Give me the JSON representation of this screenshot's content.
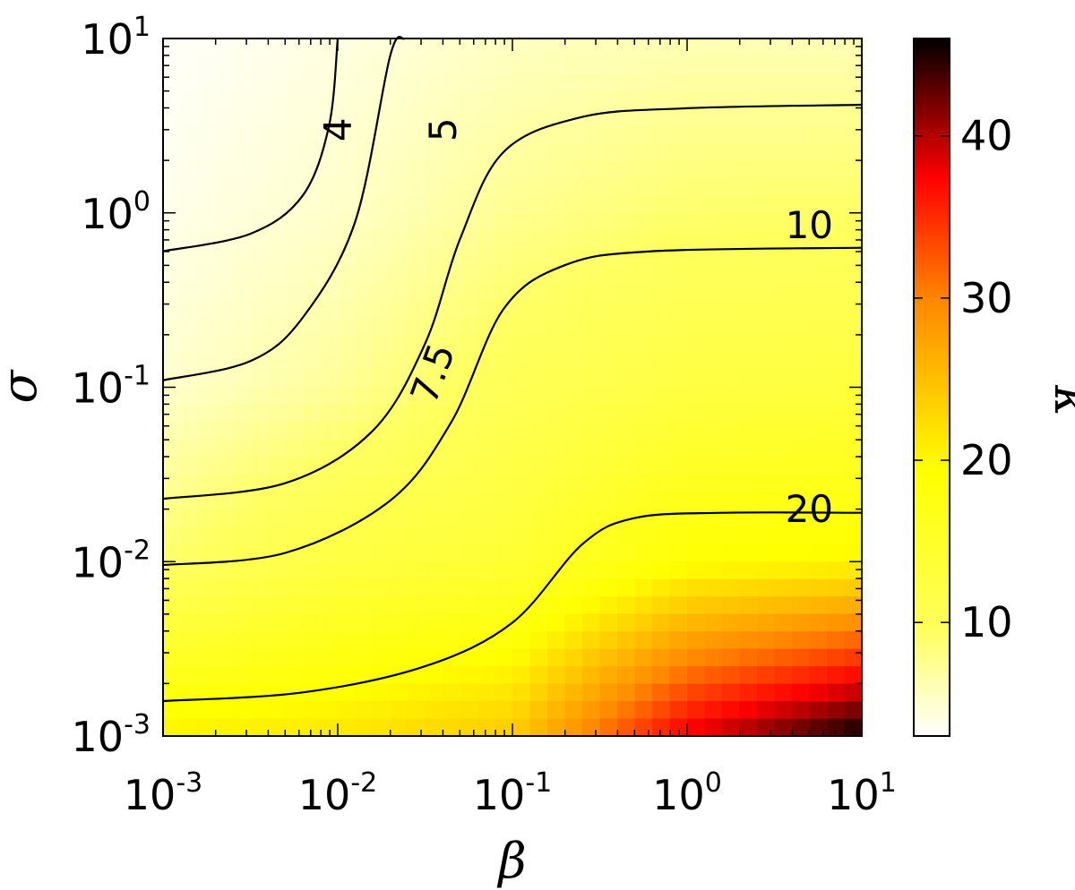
{
  "chart_data": {
    "type": "heatmap",
    "x_axis": {
      "label": "β",
      "scale": "log",
      "range": [
        0.001,
        10
      ],
      "ticks": [
        {
          "value": 0.001,
          "base": "10",
          "exp": "-3"
        },
        {
          "value": 0.01,
          "base": "10",
          "exp": "-2"
        },
        {
          "value": 0.1,
          "base": "10",
          "exp": "-1"
        },
        {
          "value": 1,
          "base": "10",
          "exp": "0"
        },
        {
          "value": 10,
          "base": "10",
          "exp": "1"
        }
      ]
    },
    "y_axis": {
      "label": "σ",
      "scale": "log",
      "range": [
        0.001,
        10
      ],
      "ticks": [
        {
          "value": 0.001,
          "base": "10",
          "exp": "-3"
        },
        {
          "value": 0.01,
          "base": "10",
          "exp": "-2"
        },
        {
          "value": 0.1,
          "base": "10",
          "exp": "-1"
        },
        {
          "value": 1,
          "base": "10",
          "exp": "0"
        },
        {
          "value": 10,
          "base": "10",
          "exp": "1"
        }
      ]
    },
    "colorbar": {
      "label": "κ",
      "range": [
        3,
        46
      ],
      "colormap": "hot_r",
      "ticks": [
        {
          "value": 10,
          "label": "10"
        },
        {
          "value": 20,
          "label": "20"
        },
        {
          "value": 30,
          "label": "30"
        },
        {
          "value": 40,
          "label": "40"
        }
      ]
    },
    "heatmap_samples": {
      "note_axes": "rows are sigma (log10 from 1 down to -3), columns are beta (log10 from -3 to 1)",
      "log10_beta": [
        -3,
        -2,
        -1,
        0,
        1
      ],
      "log10_sigma": [
        1,
        0,
        -1,
        -2,
        -3
      ],
      "kappa": [
        [
          3.2,
          4.2,
          5.5,
          6.0,
          6.0
        ],
        [
          3.8,
          5.2,
          7.5,
          9.0,
          9.2
        ],
        [
          5.0,
          7.2,
          10.5,
          12.5,
          13.0
        ],
        [
          9.0,
          12.5,
          14.0,
          19.0,
          20.0
        ],
        [
          20.5,
          21.5,
          24.0,
          38.0,
          46.0
        ]
      ]
    },
    "contours": [
      {
        "level": "4",
        "points": [
          [
            -3,
            -0.22
          ],
          [
            -2.5,
            -0.12
          ],
          [
            -2.2,
            0.1
          ],
          [
            -2.05,
            0.5
          ],
          [
            -2.0,
            1.0
          ]
        ]
      },
      {
        "level": "5",
        "points": [
          [
            -3,
            -0.96
          ],
          [
            -2.5,
            -0.85
          ],
          [
            -2.2,
            -0.6
          ],
          [
            -1.9,
            -0.05
          ],
          [
            -1.7,
            0.9
          ],
          [
            -1.62,
            1.0
          ]
        ]
      },
      {
        "level": "7.5",
        "points": [
          [
            -3,
            -1.64
          ],
          [
            -2.3,
            -1.55
          ],
          [
            -1.8,
            -1.25
          ],
          [
            -1.5,
            -0.75
          ],
          [
            -1.3,
            -0.15
          ],
          [
            -1.05,
            0.35
          ],
          [
            -0.6,
            0.55
          ],
          [
            0,
            0.6
          ],
          [
            1,
            0.62
          ]
        ]
      },
      {
        "level": "10",
        "points": [
          [
            -3,
            -2.02
          ],
          [
            -2.3,
            -1.95
          ],
          [
            -1.7,
            -1.65
          ],
          [
            -1.35,
            -1.2
          ],
          [
            -1.05,
            -0.55
          ],
          [
            -0.7,
            -0.3
          ],
          [
            -0.2,
            -0.22
          ],
          [
            1,
            -0.2
          ]
        ]
      },
      {
        "level": "20",
        "points": [
          [
            -3,
            -2.8
          ],
          [
            -2.2,
            -2.75
          ],
          [
            -1.5,
            -2.6
          ],
          [
            -1.0,
            -2.35
          ],
          [
            -0.6,
            -1.9
          ],
          [
            -0.3,
            -1.75
          ],
          [
            0.2,
            -1.72
          ],
          [
            1,
            -1.72
          ]
        ]
      }
    ],
    "contour_labels": [
      {
        "text": "4",
        "x": 0.01,
        "y": 3.0,
        "rotate": -90
      },
      {
        "text": "5",
        "x": 0.04,
        "y": 3.0,
        "rotate": -90
      },
      {
        "text": "7.5",
        "x": 0.035,
        "y": 0.12,
        "rotate": -70
      },
      {
        "text": "10",
        "x": 5,
        "y": 0.85,
        "rotate": 0
      },
      {
        "text": "20",
        "x": 5,
        "y": 0.02,
        "rotate": 0
      }
    ]
  }
}
